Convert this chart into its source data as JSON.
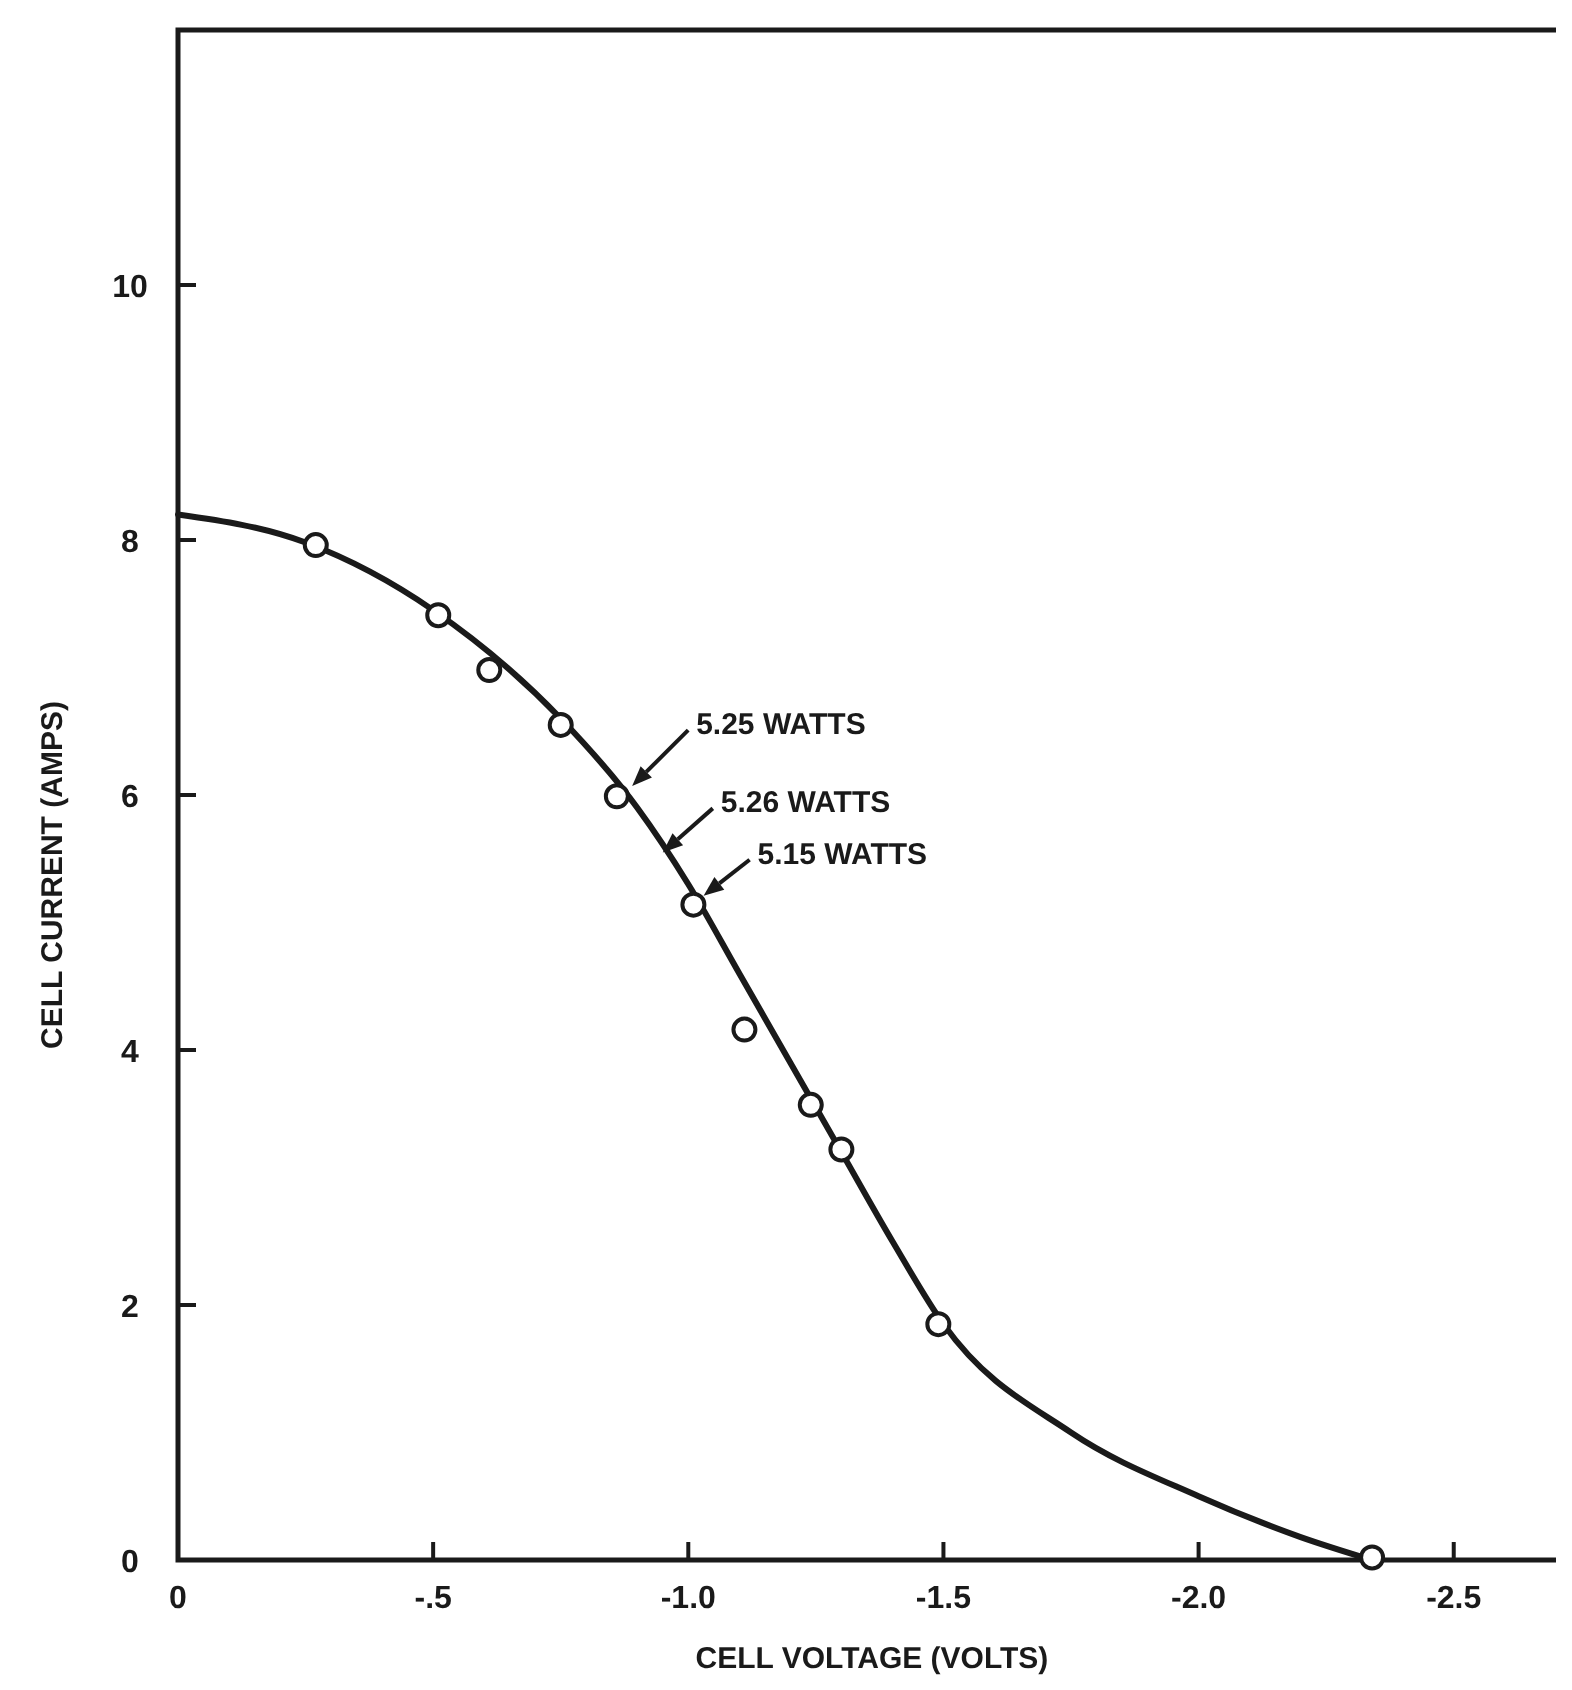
{
  "chart_data": {
    "type": "scatter",
    "xlabel": "CELL VOLTAGE (VOLTS)",
    "ylabel": "CELL CURRENT (AMPS)",
    "xlim": [
      0,
      -2.72
    ],
    "ylim": [
      0,
      12
    ],
    "xticks": [
      0,
      {
        "value": -0.5,
        "label": "-.5"
      },
      {
        "value": -1,
        "label": "-1.0"
      },
      -1.5,
      {
        "value": -2,
        "label": "-2.0"
      },
      -2.5
    ],
    "yticks": [
      0,
      2,
      4,
      6,
      8,
      10
    ],
    "grid": false,
    "series": [
      {
        "type": "line",
        "color": "#1a1a1a",
        "marker": "none",
        "line_style": "solid",
        "x": [
          0,
          -0.25,
          -0.5,
          -0.75,
          -0.9,
          -1.0,
          -1.1,
          -1.2,
          -1.3,
          -1.4,
          -1.5,
          -1.75,
          -2.0,
          -2.2,
          -2.34
        ],
        "values": [
          8.2,
          7.98,
          7.45,
          6.6,
          5.9,
          5.3,
          4.6,
          3.9,
          3.2,
          2.5,
          1.85,
          1.0,
          0.5,
          0.18,
          0
        ]
      },
      {
        "color": "#1a1a1a",
        "marker": "circle",
        "x": [
          -0.27,
          -0.51,
          -0.61,
          -0.75,
          -0.86,
          -1.01,
          -1.11,
          -1.24,
          -1.3,
          -1.49,
          -2.34
        ],
        "values": [
          7.96,
          7.41,
          6.98,
          6.55,
          5.99,
          5.14,
          4.16,
          3.57,
          3.22,
          1.85,
          0.02
        ]
      }
    ],
    "annotations": [
      {
        "text": "5.25 WATTS",
        "x": -0.89,
        "y": 6.07
      },
      {
        "text": "5.26 WATTS",
        "x": -0.95,
        "y": 5.55
      },
      {
        "text": "5.15 WATTS",
        "x": -1.03,
        "y": 5.21
      }
    ]
  }
}
